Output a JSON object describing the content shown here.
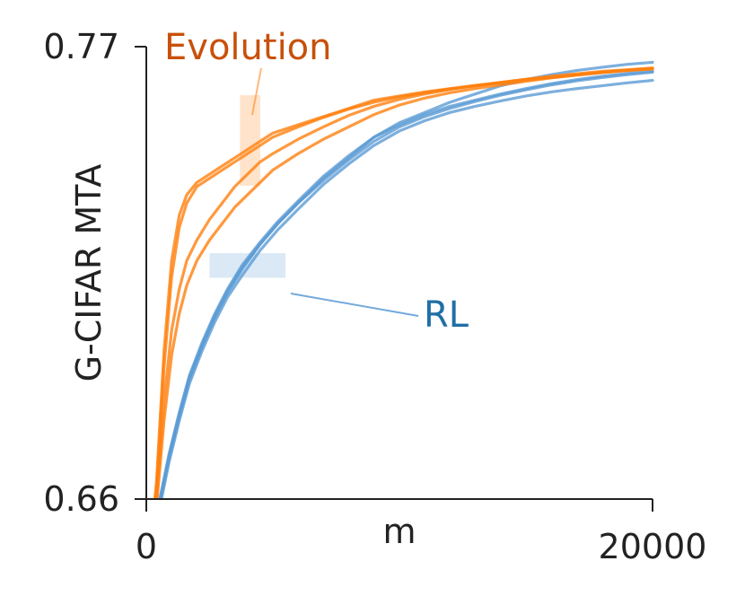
{
  "chart_data": {
    "type": "line",
    "title": "",
    "xlabel": "m",
    "ylabel": "G-CIFAR MTA",
    "xlim": [
      0,
      20000
    ],
    "ylim": [
      0.66,
      0.77
    ],
    "xticks": [
      "0",
      "20000"
    ],
    "yticks": [
      "0.77",
      "0.66"
    ],
    "grid": false,
    "legend": "inline-annotations",
    "series": [
      {
        "name": "Evolution",
        "color": "#ff7f0e",
        "label_color": "#c8500a",
        "runs": [
          {
            "x": [
              0,
              400,
              700,
              1000,
              1300,
              1600,
              2000,
              2500,
              3000,
              3500,
              4000,
              4500,
              5000,
              6000,
              7000,
              8000,
              9000,
              10000,
              11000,
              12000,
              13000,
              14000,
              15000,
              16000,
              17000,
              18000,
              19000,
              20000
            ],
            "y": [
              0.64,
              0.664,
              0.696,
              0.718,
              0.729,
              0.734,
              0.737,
              0.739,
              0.741,
              0.743,
              0.745,
              0.747,
              0.749,
              0.751,
              0.753,
              0.755,
              0.757,
              0.758,
              0.759,
              0.7598,
              0.7606,
              0.7613,
              0.762,
              0.7626,
              0.7632,
              0.7638,
              0.7643,
              0.7648
            ]
          },
          {
            "x": [
              0,
              400,
              700,
              1000,
              1300,
              1600,
              2000,
              2500,
              3000,
              3500,
              4000,
              4500,
              5000,
              6000,
              7000,
              8000,
              9000,
              10000,
              11000,
              12000,
              13000,
              14000,
              15000,
              16000,
              17000,
              18000,
              19000,
              20000
            ],
            "y": [
              0.64,
              0.662,
              0.692,
              0.714,
              0.726,
              0.732,
              0.736,
              0.738,
              0.74,
              0.742,
              0.744,
              0.746,
              0.748,
              0.7505,
              0.7528,
              0.7548,
              0.7565,
              0.7578,
              0.7588,
              0.7597,
              0.7605,
              0.7612,
              0.7619,
              0.7625,
              0.7631,
              0.7637,
              0.7642,
              0.7646
            ]
          },
          {
            "x": [
              0,
              400,
              700,
              1000,
              1300,
              1600,
              2000,
              2500,
              3000,
              3500,
              4000,
              4500,
              5000,
              6000,
              7000,
              8000,
              9000,
              10000,
              11000,
              12000,
              13000,
              14000,
              15000,
              16000,
              17000,
              18000,
              19000,
              20000
            ],
            "y": [
              0.64,
              0.66,
              0.684,
              0.701,
              0.711,
              0.718,
              0.723,
              0.728,
              0.732,
              0.736,
              0.739,
              0.742,
              0.744,
              0.7475,
              0.7505,
              0.7533,
              0.7555,
              0.7572,
              0.7585,
              0.7596,
              0.7605,
              0.7613,
              0.7621,
              0.7628,
              0.7634,
              0.764,
              0.7644,
              0.7648
            ]
          },
          {
            "x": [
              0,
              400,
              700,
              1000,
              1300,
              1600,
              2000,
              2500,
              3000,
              3500,
              4000,
              4500,
              5000,
              6000,
              7000,
              8000,
              9000,
              10000,
              11000,
              12000,
              13000,
              14000,
              15000,
              16000,
              17000,
              18000,
              19000,
              20000
            ],
            "y": [
              0.64,
              0.658,
              0.679,
              0.695,
              0.705,
              0.712,
              0.718,
              0.723,
              0.727,
              0.731,
              0.734,
              0.737,
              0.74,
              0.744,
              0.7475,
              0.7505,
              0.7535,
              0.7558,
              0.7575,
              0.7588,
              0.7598,
              0.7607,
              0.7616,
              0.7624,
              0.7631,
              0.7637,
              0.7642,
              0.7646
            ]
          }
        ]
      },
      {
        "name": "RL",
        "color": "#5b9bd5",
        "label_color": "#1f6fa6",
        "runs": [
          {
            "x": [
              0,
              500,
              900,
              1300,
              1700,
              2200,
              2700,
              3200,
              3800,
              4500,
              5200,
              6000,
              7000,
              8000,
              9000,
              10000,
              11000,
              12000,
              13000,
              14000,
              15000,
              16000,
              17000,
              18000,
              19000,
              20000
            ],
            "y": [
              0.64,
              0.658,
              0.67,
              0.68,
              0.689,
              0.697,
              0.704,
              0.71,
              0.716,
              0.722,
              0.727,
              0.732,
              0.738,
              0.743,
              0.748,
              0.751,
              0.7535,
              0.7555,
              0.757,
              0.7585,
              0.7598,
              0.761,
              0.762,
              0.7628,
              0.7635,
              0.764
            ]
          },
          {
            "x": [
              0,
              500,
              900,
              1300,
              1700,
              2200,
              2700,
              3200,
              3800,
              4500,
              5200,
              6000,
              7000,
              8000,
              9000,
              10000,
              11000,
              12000,
              13000,
              14000,
              15000,
              16000,
              17000,
              18000,
              19000,
              20000
            ],
            "y": [
              0.64,
              0.659,
              0.671,
              0.681,
              0.69,
              0.698,
              0.705,
              0.711,
              0.717,
              0.7225,
              0.7275,
              0.7325,
              0.7385,
              0.7435,
              0.748,
              0.7515,
              0.754,
              0.7565,
              0.7585,
              0.7605,
              0.762,
              0.7632,
              0.7642,
              0.765,
              0.7657,
              0.7662
            ]
          },
          {
            "x": [
              0,
              500,
              900,
              1300,
              1700,
              2200,
              2700,
              3200,
              3800,
              4500,
              5200,
              6000,
              7000,
              8000,
              9000,
              10000,
              11000,
              12000,
              13000,
              14000,
              15000,
              16000,
              17000,
              18000,
              19000,
              20000
            ],
            "y": [
              0.64,
              0.657,
              0.669,
              0.679,
              0.688,
              0.696,
              0.703,
              0.709,
              0.7145,
              0.7205,
              0.7255,
              0.7305,
              0.7365,
              0.7415,
              0.746,
              0.7495,
              0.752,
              0.754,
              0.7555,
              0.7568,
              0.758,
              0.759,
              0.7598,
              0.7605,
              0.7612,
              0.7618
            ]
          },
          {
            "x": [
              0,
              500,
              900,
              1300,
              1700,
              2200,
              2700,
              3200,
              3800,
              4500,
              5200,
              6000,
              7000,
              8000,
              9000,
              10000,
              11000,
              12000,
              13000,
              14000,
              15000,
              16000,
              17000,
              18000,
              19000,
              20000
            ],
            "y": [
              0.64,
              0.6585,
              0.6705,
              0.6805,
              0.6895,
              0.6975,
              0.7045,
              0.7105,
              0.7165,
              0.722,
              0.727,
              0.732,
              0.7375,
              0.7425,
              0.747,
              0.7505,
              0.753,
              0.755,
              0.7567,
              0.7582,
              0.7595,
              0.7607,
              0.7617,
              0.7625,
              0.7632,
              0.7638
            ]
          }
        ]
      }
    ],
    "annotations": [
      {
        "text": "Evolution",
        "series": "Evolution",
        "band_x": [
          3700,
          4500
        ],
        "band_y": [
          0.7362,
          0.7582
        ]
      },
      {
        "text": "RL",
        "series": "RL",
        "band_x": [
          2500,
          5500
        ],
        "band_y": [
          0.7138,
          0.7198
        ]
      }
    ]
  }
}
